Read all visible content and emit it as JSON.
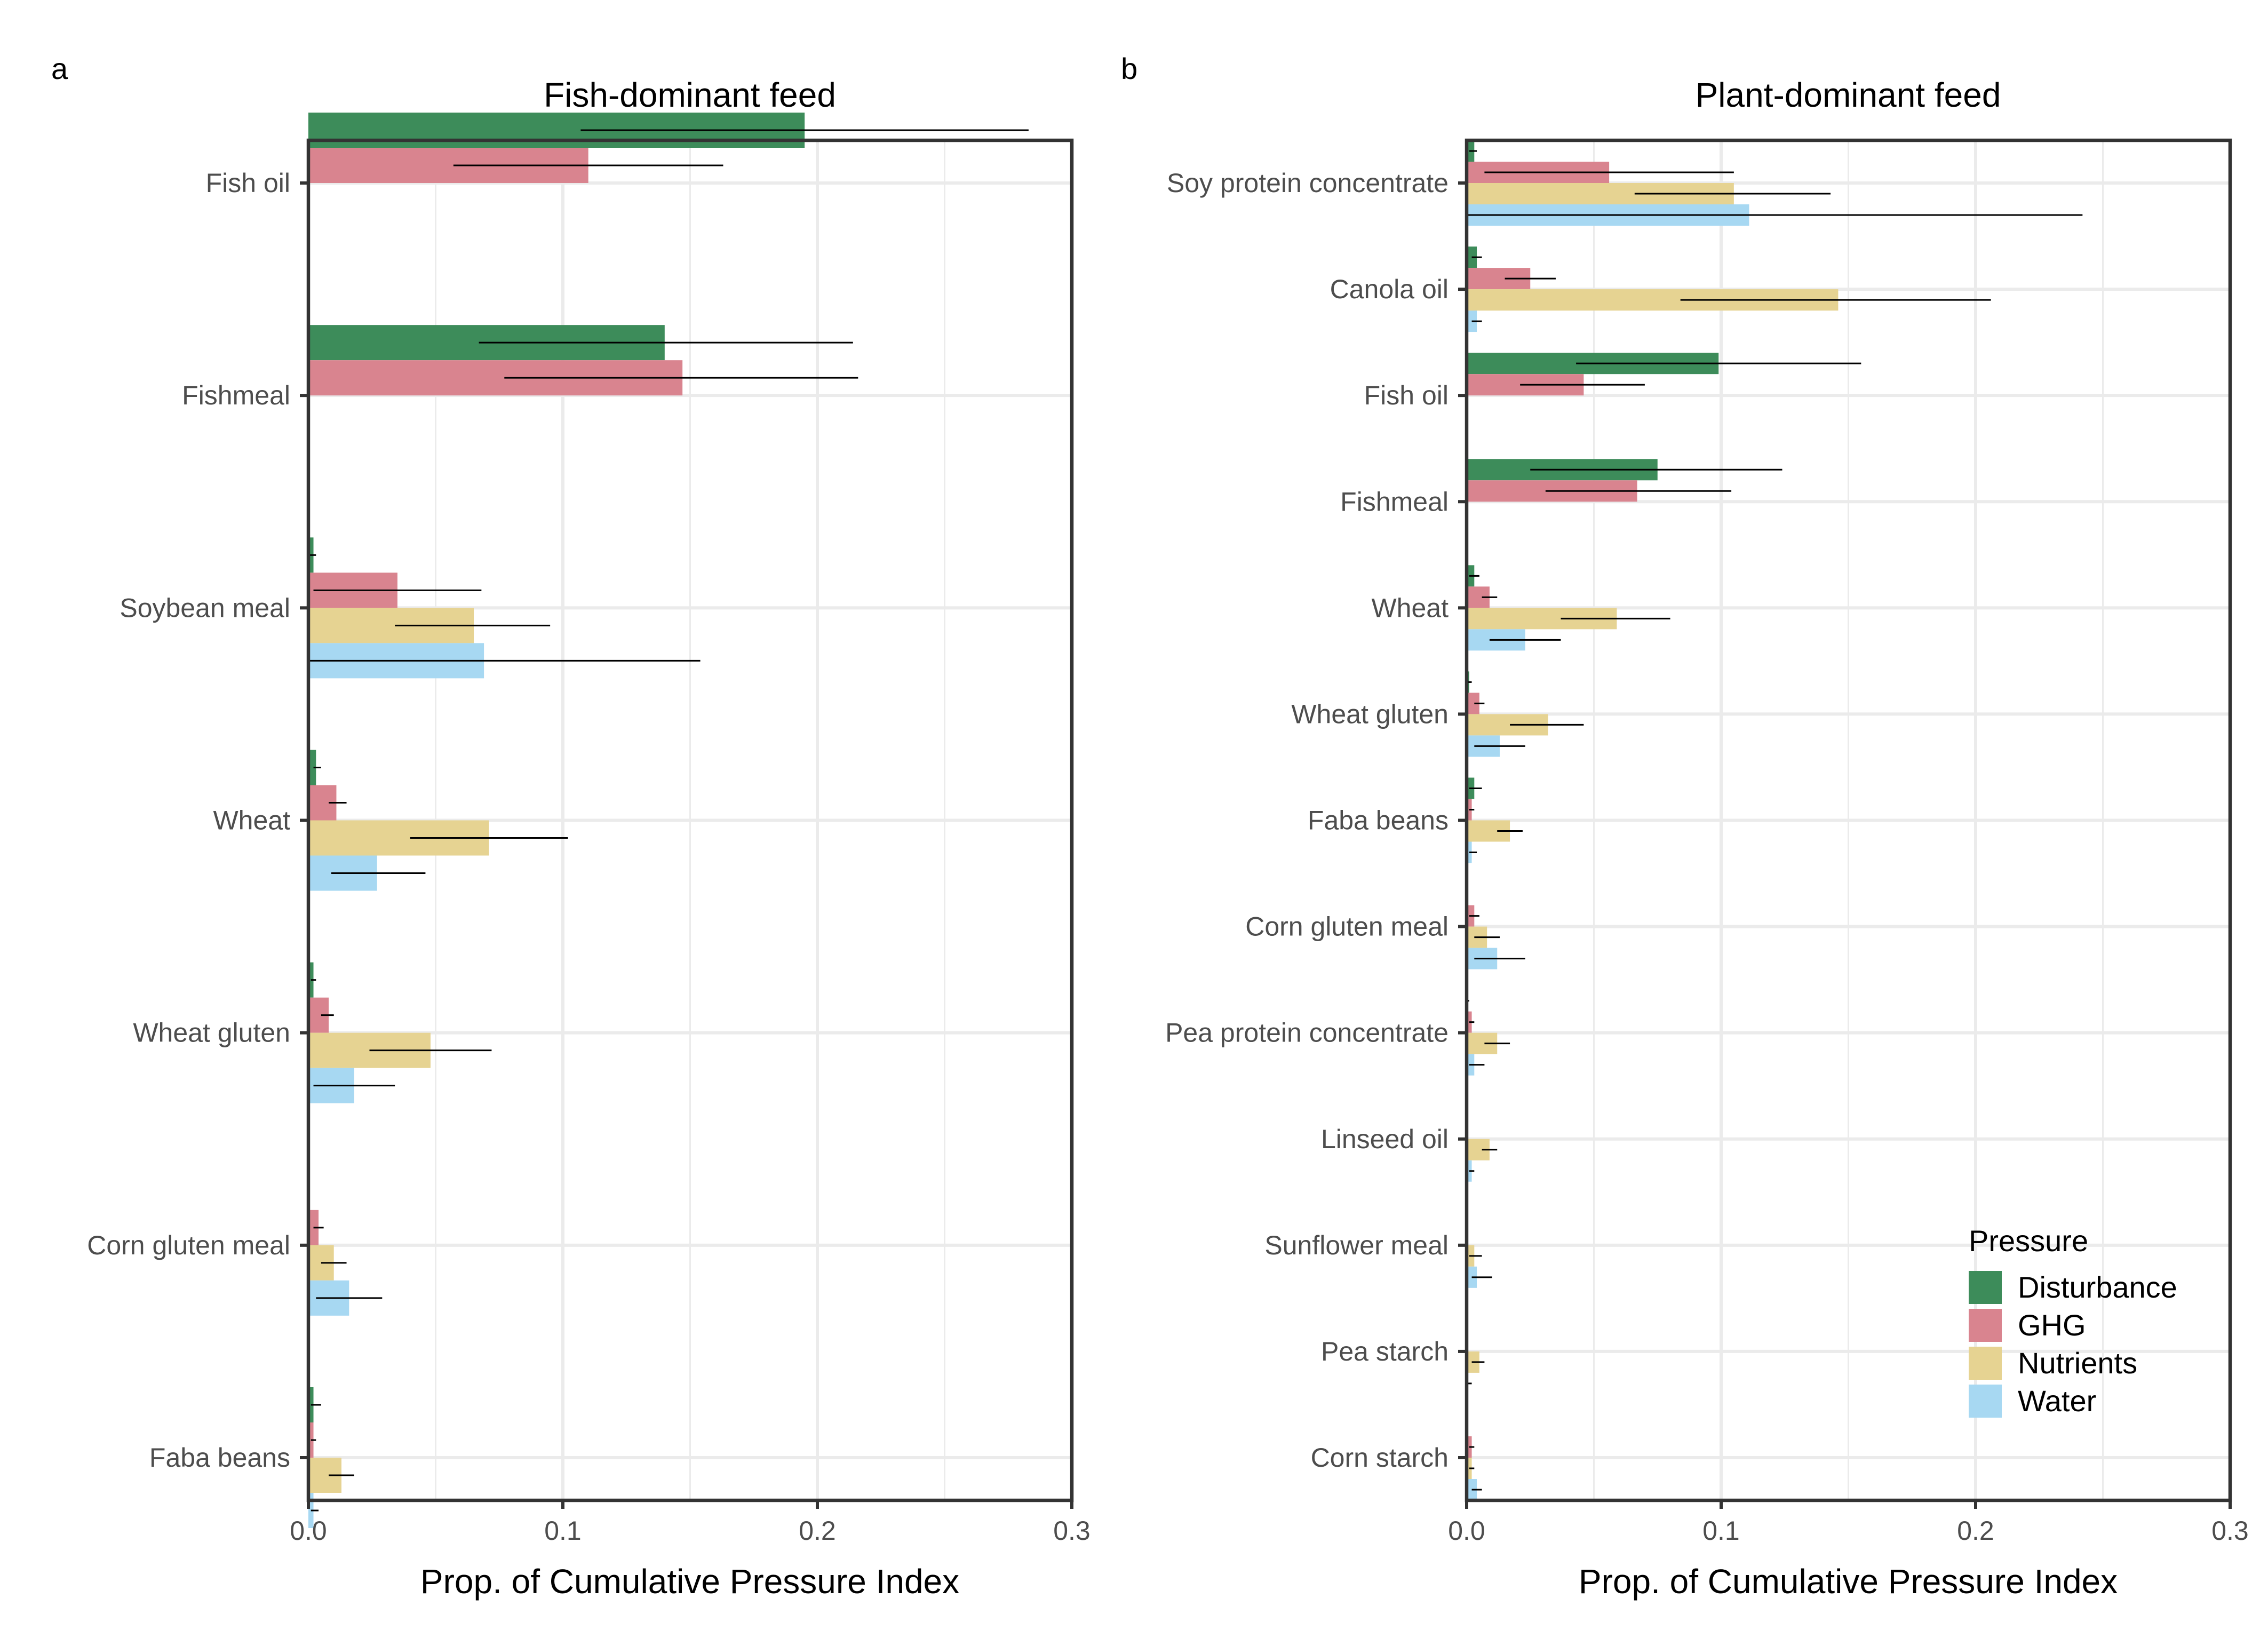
{
  "chart_data": [
    {
      "type": "bar",
      "orientation": "horizontal",
      "panel_label": "a",
      "title": "Fish-dominant feed",
      "xlabel": "Prop. of Cumulative Pressure Index",
      "ylabel": "",
      "xlim": [
        0,
        0.3
      ],
      "x_ticks": [
        "0.0",
        "0.1",
        "0.2",
        "0.3"
      ],
      "grid": true,
      "categories": [
        "Fish oil",
        "Fishmeal",
        "Soybean meal",
        "Wheat",
        "Wheat gluten",
        "Corn gluten meal",
        "Faba beans"
      ],
      "series": [
        {
          "name": "Disturbance",
          "values": [
            0.195,
            0.14,
            0.002,
            0.003,
            0.002,
            0,
            0.002
          ],
          "err_low": [
            0.107,
            0.067,
            0,
            0.002,
            0.001,
            0,
            0.001
          ],
          "err_high": [
            0.283,
            0.214,
            0.003,
            0.005,
            0.003,
            0,
            0.005
          ]
        },
        {
          "name": "GHG",
          "values": [
            0.11,
            0.147,
            0.035,
            0.011,
            0.008,
            0.004,
            0.002
          ],
          "err_low": [
            0.057,
            0.077,
            0.002,
            0.008,
            0.005,
            0.002,
            0.001
          ],
          "err_high": [
            0.163,
            0.216,
            0.068,
            0.015,
            0.01,
            0.006,
            0.003
          ]
        },
        {
          "name": "Nutrients",
          "values": [
            0,
            0,
            0.065,
            0.071,
            0.048,
            0.01,
            0.013
          ],
          "err_low": [
            0,
            0,
            0.034,
            0.04,
            0.024,
            0.005,
            0.008
          ],
          "err_high": [
            0,
            0,
            0.095,
            0.102,
            0.072,
            0.015,
            0.018
          ]
        },
        {
          "name": "Water",
          "values": [
            0,
            0,
            0.069,
            0.027,
            0.018,
            0.016,
            0.002
          ],
          "err_low": [
            0,
            0,
            0,
            0.009,
            0.002,
            0.003,
            0.001
          ],
          "err_high": [
            0,
            0,
            0.154,
            0.046,
            0.034,
            0.029,
            0.004
          ]
        }
      ]
    },
    {
      "type": "bar",
      "orientation": "horizontal",
      "panel_label": "b",
      "title": "Plant-dominant feed",
      "xlabel": "Prop. of Cumulative Pressure Index",
      "ylabel": "",
      "xlim": [
        0,
        0.3
      ],
      "x_ticks": [
        "0.0",
        "0.1",
        "0.2",
        "0.3"
      ],
      "grid": true,
      "legend_position": "bottom-right",
      "categories": [
        "Soy protein concentrate",
        "Canola oil",
        "Fish oil",
        "Fishmeal",
        "Wheat",
        "Wheat gluten",
        "Faba beans",
        "Corn gluten meal",
        "Pea protein concentrate",
        "Linseed oil",
        "Sunflower meal",
        "Pea starch",
        "Corn starch"
      ],
      "series": [
        {
          "name": "Disturbance",
          "values": [
            0.003,
            0.004,
            0.099,
            0.075,
            0.003,
            0.001,
            0.003,
            0,
            0,
            0,
            0,
            0,
            0
          ],
          "err_low": [
            0.001,
            0.002,
            0.043,
            0.025,
            0.001,
            0,
            0.001,
            0,
            0,
            0,
            0,
            0,
            0
          ],
          "err_high": [
            0.004,
            0.006,
            0.155,
            0.124,
            0.005,
            0.002,
            0.006,
            0,
            0.001,
            0,
            0,
            0,
            0
          ]
        },
        {
          "name": "GHG",
          "values": [
            0.056,
            0.025,
            0.046,
            0.067,
            0.009,
            0.005,
            0.002,
            0.003,
            0.002,
            0,
            0,
            0,
            0.002
          ],
          "err_low": [
            0.007,
            0.015,
            0.021,
            0.031,
            0.006,
            0.003,
            0.001,
            0.001,
            0.001,
            0,
            0,
            0,
            0.001
          ],
          "err_high": [
            0.105,
            0.035,
            0.07,
            0.104,
            0.012,
            0.007,
            0.003,
            0.005,
            0.003,
            0,
            0,
            0,
            0.003
          ]
        },
        {
          "name": "Nutrients",
          "values": [
            0.105,
            0.146,
            0,
            0,
            0.059,
            0.032,
            0.017,
            0.008,
            0.012,
            0.009,
            0.003,
            0.005,
            0.002
          ],
          "err_low": [
            0.066,
            0.084,
            0,
            0,
            0.037,
            0.017,
            0.012,
            0.003,
            0.007,
            0.006,
            0.001,
            0.002,
            0.001
          ],
          "err_high": [
            0.143,
            0.206,
            0,
            0,
            0.08,
            0.046,
            0.022,
            0.013,
            0.017,
            0.012,
            0.006,
            0.007,
            0.003
          ]
        },
        {
          "name": "Water",
          "values": [
            0.111,
            0.004,
            0,
            0,
            0.023,
            0.013,
            0.002,
            0.012,
            0.003,
            0.002,
            0.004,
            0,
            0.004
          ],
          "err_low": [
            0,
            0.002,
            0,
            0,
            0.009,
            0.003,
            0.001,
            0.003,
            0.001,
            0.001,
            0.002,
            0,
            0.002
          ],
          "err_high": [
            0.242,
            0.006,
            0,
            0,
            0.037,
            0.023,
            0.004,
            0.023,
            0.007,
            0.003,
            0.01,
            0.002,
            0.006
          ]
        }
      ]
    }
  ],
  "legend": {
    "title": "Pressure",
    "items": [
      {
        "label": "Disturbance",
        "color": "#3d8c5a"
      },
      {
        "label": "GHG",
        "color": "#d9848f"
      },
      {
        "label": "Nutrients",
        "color": "#e6d392"
      },
      {
        "label": "Water",
        "color": "#a7d8f2"
      }
    ]
  },
  "colors": {
    "Disturbance": "#3d8c5a",
    "GHG": "#d9848f",
    "Nutrients": "#e6d392",
    "Water": "#a7d8f2",
    "grid": "#ebebeb",
    "axis": "#333333",
    "text": "#4d4d4d"
  }
}
